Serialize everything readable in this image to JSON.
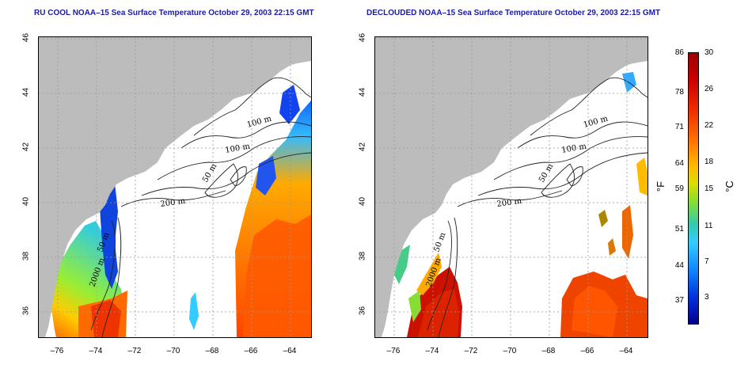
{
  "titles": {
    "left": "RU COOL NOAA–15 Sea Surface Temperature October 29, 2003 22:15 GMT",
    "right": "DECLOUDED NOAA–15 Sea Surface Temperature October 29, 2003 22:15 GMT"
  },
  "map": {
    "lat_ticks": [
      "46",
      "44",
      "42",
      "40",
      "38",
      "36"
    ],
    "lon_ticks": [
      "–76",
      "–74",
      "–72",
      "–70",
      "–68",
      "–66",
      "–64"
    ],
    "lon_range": [
      -77,
      -63
    ],
    "lat_range": [
      35,
      46
    ],
    "contour_labels": [
      "100 m",
      "100 m",
      "50 m",
      "200 m",
      "50 m",
      "2000 m"
    ],
    "land_color": "#bcbcbc",
    "grid": true
  },
  "colorbar": {
    "fahrenheit_ticks": [
      "86",
      "78",
      "71",
      "64",
      "59",
      "51",
      "44",
      "37"
    ],
    "celsius_ticks": [
      "30",
      "26",
      "22",
      "18",
      "15",
      "11",
      "7",
      "3"
    ],
    "fahrenheit_unit": "°F",
    "celsius_unit": "°C"
  }
}
